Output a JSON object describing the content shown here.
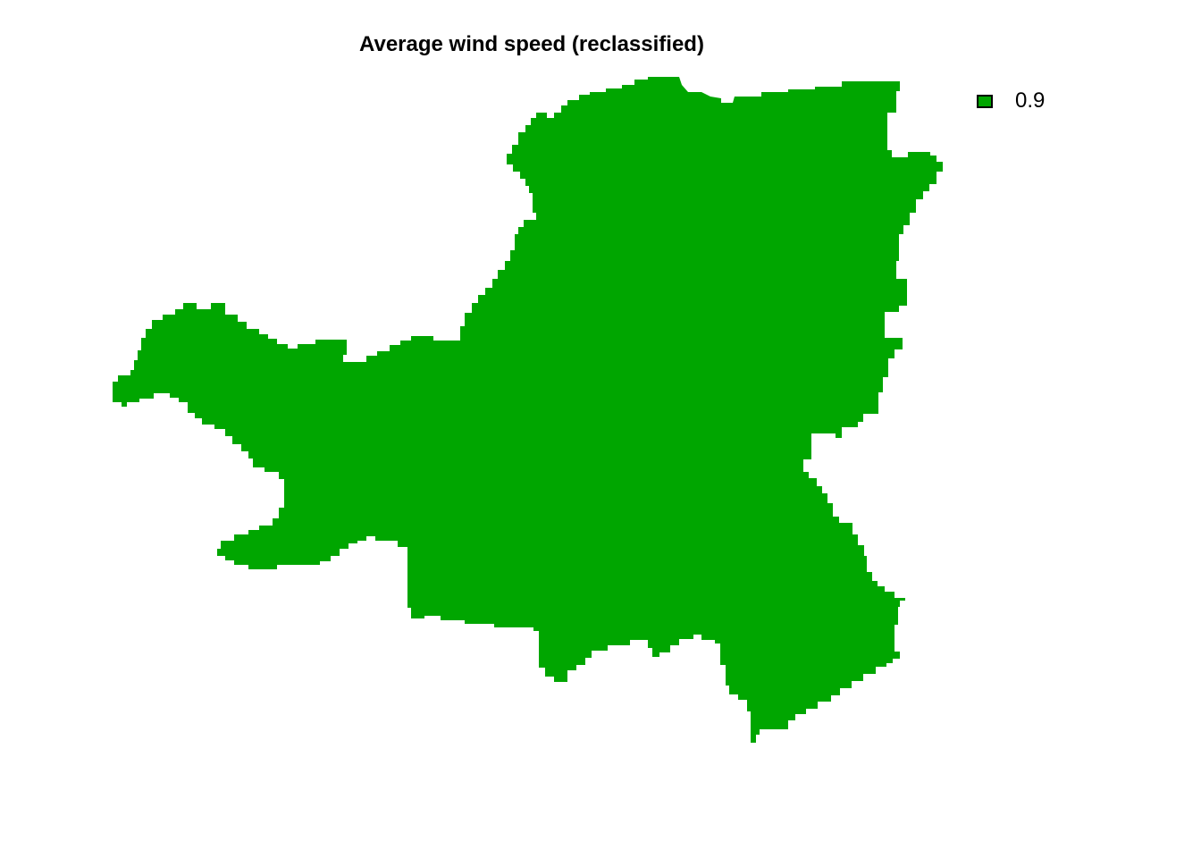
{
  "title": "Average wind speed (reclassified)",
  "map": {
    "region_fill": "#00a600",
    "background": "#ffffff"
  },
  "legend": {
    "items": [
      {
        "label": "0.9",
        "color": "#00a600"
      }
    ]
  }
}
